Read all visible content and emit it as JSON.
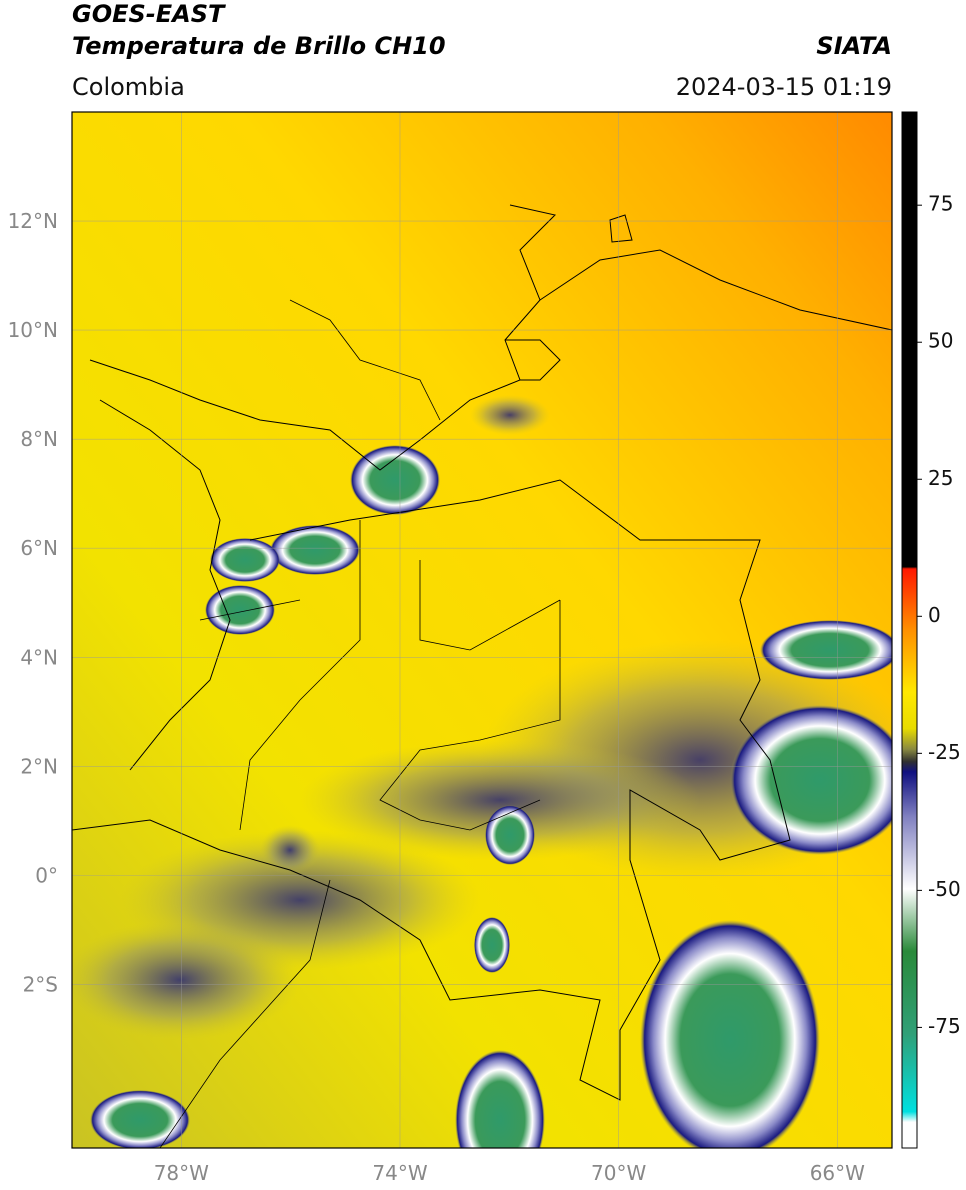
{
  "header": {
    "title": "GOES-EAST",
    "subtitle": "Temperatura de Brillo CH10",
    "source": "SIATA",
    "region": "Colombia",
    "datetime": "2024-03-15 01:19"
  },
  "map": {
    "xlim": [
      -80,
      -65
    ],
    "ylim": [
      -5,
      14
    ],
    "xticks": [
      {
        "value": -78,
        "label": "78°W"
      },
      {
        "value": -74,
        "label": "74°W"
      },
      {
        "value": -70,
        "label": "70°W"
      },
      {
        "value": -66,
        "label": "66°W"
      }
    ],
    "yticks": [
      {
        "value": 12,
        "label": "12°N"
      },
      {
        "value": 10,
        "label": "10°N"
      },
      {
        "value": 8,
        "label": "8°N"
      },
      {
        "value": 6,
        "label": "6°N"
      },
      {
        "value": 4,
        "label": "4°N"
      },
      {
        "value": 2,
        "label": "2°N"
      },
      {
        "value": 0,
        "label": "0°"
      },
      {
        "value": -2,
        "label": "2°S"
      }
    ],
    "grid": true
  },
  "colorbar": {
    "lim": [
      -97,
      92
    ],
    "ticks": [
      75,
      50,
      25,
      0,
      -25,
      -50,
      -75
    ]
  }
}
